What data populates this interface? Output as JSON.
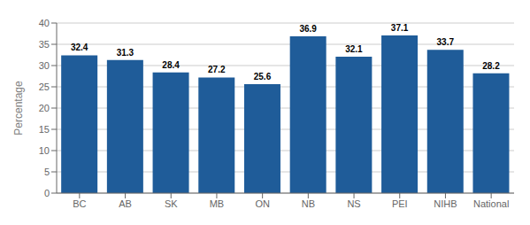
{
  "chart_data": {
    "type": "bar",
    "categories": [
      "BC",
      "AB",
      "SK",
      "MB",
      "ON",
      "NB",
      "NS",
      "PEI",
      "NIHB",
      "National"
    ],
    "values": [
      32.4,
      31.3,
      28.4,
      27.2,
      25.6,
      36.9,
      32.1,
      37.1,
      33.7,
      28.2
    ],
    "color": "#1F5C99",
    "ylabel": "Percentage",
    "ylim": [
      0,
      40
    ],
    "yticks": [
      0,
      5,
      10,
      15,
      20,
      25,
      30,
      35,
      40
    ],
    "grid": true,
    "data_labels": true
  }
}
